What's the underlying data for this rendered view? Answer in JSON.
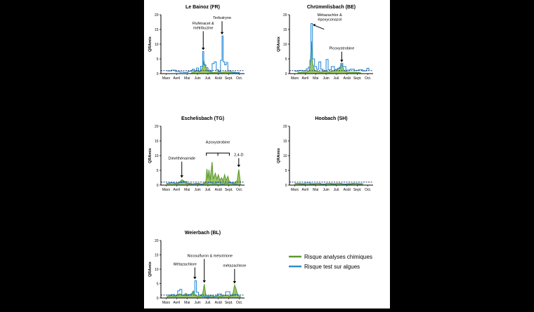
{
  "colors": {
    "chem": "#5e9a32",
    "chem_fill": "#9cc86a",
    "algae": "#2e8fd8",
    "threshold": "#1a3a6a",
    "axis": "#000000"
  },
  "legend": {
    "chem_label": "Risque analyses chimiques",
    "algae_label": "Risque test sur algues"
  },
  "chart_data": [
    {
      "type": "area",
      "title": "Le Bainoz (FR)",
      "ylabel": "QRAmix",
      "ylim": [
        0,
        20
      ],
      "yticks": [
        0,
        5,
        10,
        15,
        20
      ],
      "x_tick_labels": [
        "Mars",
        "Avril",
        "Mai",
        "Juin",
        "Juil.",
        "Août",
        "Sept.",
        "Oct."
      ],
      "threshold": 1,
      "series": [
        {
          "name": "Risque analyses chimiques",
          "points": [
            [
              2.9,
              0.2
            ],
            [
              3.3,
              0.8
            ],
            [
              3.5,
              1.2
            ],
            [
              3.7,
              0.6
            ],
            [
              3.9,
              1.3
            ],
            [
              4.0,
              2.5
            ],
            [
              4.1,
              4.5
            ],
            [
              4.2,
              3.0
            ],
            [
              4.4,
              1.2
            ],
            [
              4.6,
              0.6
            ],
            [
              5.0,
              0.3
            ],
            [
              5.4,
              0.5
            ],
            [
              5.6,
              0.9
            ],
            [
              5.8,
              0.4
            ],
            [
              6.2,
              0.6
            ],
            [
              6.6,
              0.5
            ],
            [
              7.0,
              0.3
            ],
            [
              7.4,
              0.4
            ]
          ]
        },
        {
          "name": "Risque test sur algues",
          "points": [
            [
              0.6,
              0.9
            ],
            [
              1.0,
              1.2
            ],
            [
              1.4,
              0.7
            ],
            [
              1.8,
              0.5
            ],
            [
              2.2,
              0.4
            ],
            [
              2.6,
              0.8
            ],
            [
              3.0,
              1.5
            ],
            [
              3.2,
              0.9
            ],
            [
              3.4,
              1.9
            ],
            [
              3.6,
              0.8
            ],
            [
              3.8,
              2.5
            ],
            [
              4.0,
              7.5
            ],
            [
              4.1,
              3.0
            ],
            [
              4.3,
              2.0
            ],
            [
              4.5,
              1.2
            ],
            [
              4.7,
              0.7
            ],
            [
              4.9,
              3.4
            ],
            [
              5.1,
              4.0
            ],
            [
              5.3,
              1.3
            ],
            [
              5.5,
              0.5
            ],
            [
              5.7,
              4.5
            ],
            [
              5.85,
              12.8
            ],
            [
              5.95,
              4.0
            ],
            [
              6.1,
              3.0
            ],
            [
              6.25,
              3.8
            ],
            [
              6.4,
              1.0
            ],
            [
              6.7,
              0.5
            ],
            [
              7.1,
              0.3
            ],
            [
              7.5,
              0.6
            ]
          ]
        }
      ],
      "annotations": [
        {
          "lines": [
            "Flufénacet &",
            "métribuzine"
          ],
          "x": 4.05,
          "y": 7.5
        },
        {
          "lines": [
            "Terbutryne"
          ],
          "x": 5.85,
          "y": 12.8
        }
      ]
    },
    {
      "type": "area",
      "title": "Chrümmlisbach (BE)",
      "ylabel": "QRAmix",
      "ylim": [
        0,
        20
      ],
      "yticks": [
        0,
        5,
        10,
        15,
        20
      ],
      "x_tick_labels": [
        "Mars",
        "Avril",
        "Mai",
        "Juin",
        "Juil.",
        "Août",
        "Sept.",
        "Oct."
      ],
      "threshold": 1,
      "series": [
        {
          "name": "Risque analyses chimiques",
          "points": [
            [
              0.8,
              0.3
            ],
            [
              1.2,
              0.5
            ],
            [
              1.6,
              0.4
            ],
            [
              1.9,
              1.0
            ],
            [
              2.0,
              4.0
            ],
            [
              2.1,
              11.0
            ],
            [
              2.2,
              3.5
            ],
            [
              2.4,
              1.2
            ],
            [
              2.6,
              0.8
            ],
            [
              3.0,
              0.5
            ],
            [
              3.4,
              0.8
            ],
            [
              3.8,
              0.5
            ],
            [
              4.2,
              1.0
            ],
            [
              4.6,
              1.5
            ],
            [
              4.9,
              2.5
            ],
            [
              5.0,
              3.2
            ],
            [
              5.2,
              1.2
            ],
            [
              5.5,
              0.6
            ],
            [
              5.9,
              0.4
            ],
            [
              6.3,
              0.5
            ],
            [
              6.8,
              0.3
            ]
          ]
        },
        {
          "name": "Risque test sur algues",
          "points": [
            [
              0.5,
              0.8
            ],
            [
              0.9,
              1.1
            ],
            [
              1.3,
              0.9
            ],
            [
              1.6,
              1.6
            ],
            [
              1.8,
              2.2
            ],
            [
              1.95,
              4.5
            ],
            [
              2.05,
              17.0
            ],
            [
              2.2,
              5.0
            ],
            [
              2.4,
              2.4
            ],
            [
              2.6,
              1.5
            ],
            [
              2.8,
              4.0
            ],
            [
              3.0,
              1.5
            ],
            [
              3.2,
              1.0
            ],
            [
              3.5,
              4.8
            ],
            [
              3.7,
              1.3
            ],
            [
              4.0,
              2.4
            ],
            [
              4.3,
              1.4
            ],
            [
              4.6,
              1.8
            ],
            [
              4.9,
              3.5
            ],
            [
              5.1,
              2.4
            ],
            [
              5.4,
              1.2
            ],
            [
              5.8,
              1.5
            ],
            [
              6.2,
              1.1
            ],
            [
              6.6,
              1.3
            ],
            [
              7.0,
              0.9
            ],
            [
              7.4,
              1.8
            ],
            [
              7.6,
              1.0
            ]
          ]
        }
      ],
      "annotations": [
        {
          "lines": [
            "Métazachlor &",
            "époxyconazol"
          ],
          "x": 2.1,
          "y": 16.5
        },
        {
          "lines": [
            "Picoxystrobine"
          ],
          "x": 5.0,
          "y": 3.4
        }
      ]
    },
    {
      "type": "area",
      "title": "Eschelisbach (TG)",
      "ylabel": "QRAmix",
      "ylim": [
        0,
        20
      ],
      "yticks": [
        0,
        5,
        10,
        15,
        20
      ],
      "x_tick_labels": [
        "Mars",
        "Avril",
        "Mai",
        "Juin",
        "Juil.",
        "Août",
        "Sept.",
        "Oct."
      ],
      "threshold": 1,
      "series": [
        {
          "name": "Risque analyses chimiques",
          "points": [
            [
              0.6,
              0.5
            ],
            [
              1.0,
              0.9
            ],
            [
              1.4,
              0.6
            ],
            [
              1.8,
              1.0
            ],
            [
              2.0,
              1.8
            ],
            [
              2.2,
              1.4
            ],
            [
              2.4,
              0.6
            ],
            [
              2.8,
              0.3
            ],
            [
              3.2,
              0.5
            ],
            [
              3.6,
              0.4
            ],
            [
              4.0,
              0.4
            ],
            [
              4.3,
              1.2
            ],
            [
              4.4,
              5.5
            ],
            [
              4.5,
              2.0
            ],
            [
              4.6,
              5.2
            ],
            [
              4.7,
              1.5
            ],
            [
              4.9,
              7.8
            ],
            [
              5.0,
              2.0
            ],
            [
              5.2,
              4.0
            ],
            [
              5.35,
              2.0
            ],
            [
              5.5,
              3.5
            ],
            [
              5.65,
              1.5
            ],
            [
              5.8,
              2.5
            ],
            [
              5.95,
              1.5
            ],
            [
              6.1,
              3.5
            ],
            [
              6.25,
              1.5
            ],
            [
              6.4,
              3.0
            ],
            [
              6.55,
              1.2
            ],
            [
              6.8,
              0.6
            ],
            [
              7.1,
              0.8
            ],
            [
              7.3,
              1.5
            ],
            [
              7.45,
              5.3
            ],
            [
              7.6,
              1.0
            ]
          ]
        },
        {
          "name": "Risque test sur algues",
          "points": [
            [
              0.5,
              0.6
            ],
            [
              0.9,
              0.8
            ],
            [
              1.3,
              0.5
            ],
            [
              1.7,
              0.8
            ],
            [
              2.1,
              1.2
            ],
            [
              2.5,
              0.6
            ],
            [
              2.9,
              0.4
            ],
            [
              3.3,
              0.6
            ],
            [
              3.7,
              0.3
            ],
            [
              4.1,
              0.6
            ],
            [
              4.5,
              0.9
            ],
            [
              4.9,
              0.5
            ],
            [
              5.3,
              1.0
            ],
            [
              5.7,
              0.4
            ],
            [
              6.1,
              0.6
            ],
            [
              6.5,
              0.8
            ],
            [
              6.9,
              0.4
            ],
            [
              7.3,
              0.5
            ]
          ]
        }
      ],
      "annotations": [
        {
          "lines": [
            "Diméthénamide"
          ],
          "x": 2.0,
          "y": 2.0
        },
        {
          "lines": [
            "Azoxystrobine"
          ],
          "x": 5.4,
          "y": 8.5
        },
        {
          "lines": [
            "2,4-D"
          ],
          "x": 7.45,
          "y": 5.6
        }
      ]
    },
    {
      "type": "area",
      "title": "Hoobach (SH)",
      "ylabel": "QRAmix",
      "ylim": [
        0,
        20
      ],
      "yticks": [
        0,
        5,
        10,
        15,
        20
      ],
      "x_tick_labels": [
        "Mars",
        "Avril",
        "Mai",
        "Juin",
        "Juil.",
        "Août",
        "Sept.",
        "Oct."
      ],
      "threshold": 1,
      "series": [
        {
          "name": "Risque analyses chimiques",
          "points": [
            [
              0.5,
              0.2
            ],
            [
              1.0,
              0.3
            ],
            [
              1.5,
              0.2
            ],
            [
              2.0,
              0.3
            ],
            [
              2.5,
              0.2
            ],
            [
              3.0,
              0.3
            ],
            [
              3.5,
              0.2
            ],
            [
              4.0,
              0.3
            ],
            [
              4.5,
              0.2
            ],
            [
              5.0,
              0.3
            ],
            [
              5.5,
              0.2
            ],
            [
              6.0,
              0.3
            ],
            [
              6.5,
              0.2
            ],
            [
              7.0,
              0.2
            ]
          ]
        },
        {
          "name": "Risque test sur algues",
          "points": [
            [
              0.5,
              0.6
            ],
            [
              1.0,
              0.5
            ],
            [
              1.5,
              0.7
            ],
            [
              2.0,
              0.5
            ],
            [
              2.5,
              0.6
            ],
            [
              3.0,
              0.4
            ],
            [
              3.5,
              0.6
            ],
            [
              4.0,
              0.5
            ],
            [
              4.5,
              0.6
            ],
            [
              5.0,
              0.4
            ],
            [
              5.5,
              0.5
            ],
            [
              6.0,
              0.6
            ],
            [
              6.5,
              0.5
            ],
            [
              7.0,
              0.4
            ]
          ]
        }
      ],
      "annotations": []
    },
    {
      "type": "area",
      "title": "Weierbach (BL)",
      "ylabel": "QRAmix",
      "ylim": [
        0,
        20
      ],
      "yticks": [
        0,
        5,
        10,
        15,
        20
      ],
      "x_tick_labels": [
        "Mars",
        "Avril",
        "Mai",
        "Juin",
        "Juil.",
        "Août",
        "Sept.",
        "Oct."
      ],
      "threshold": 1,
      "series": [
        {
          "name": "Risque analyses chimiques",
          "points": [
            [
              0.6,
              0.5
            ],
            [
              1.0,
              0.8
            ],
            [
              1.4,
              0.6
            ],
            [
              1.8,
              1.5
            ],
            [
              2.1,
              0.8
            ],
            [
              2.4,
              1.6
            ],
            [
              2.6,
              0.9
            ],
            [
              2.9,
              1.2
            ],
            [
              3.1,
              2.5
            ],
            [
              3.3,
              0.8
            ],
            [
              3.7,
              0.5
            ],
            [
              4.0,
              1.5
            ],
            [
              4.15,
              4.8
            ],
            [
              4.3,
              1.0
            ],
            [
              4.6,
              0.5
            ],
            [
              5.0,
              0.4
            ],
            [
              5.4,
              0.8
            ],
            [
              5.8,
              0.5
            ],
            [
              6.2,
              1.0
            ],
            [
              6.6,
              0.5
            ],
            [
              6.9,
              1.5
            ],
            [
              7.05,
              4.5
            ],
            [
              7.2,
              3.0
            ],
            [
              7.35,
              1.0
            ],
            [
              7.6,
              0.5
            ]
          ]
        },
        {
          "name": "Risque test sur algues",
          "points": [
            [
              0.6,
              1.0
            ],
            [
              1.0,
              1.2
            ],
            [
              1.3,
              0.8
            ],
            [
              1.6,
              2.5
            ],
            [
              1.8,
              3.0
            ],
            [
              2.0,
              1.0
            ],
            [
              2.3,
              0.8
            ],
            [
              2.6,
              1.2
            ],
            [
              2.9,
              1.5
            ],
            [
              3.1,
              2.0
            ],
            [
              3.25,
              6.0
            ],
            [
              3.4,
              2.0
            ],
            [
              3.6,
              1.0
            ],
            [
              3.9,
              0.6
            ],
            [
              4.2,
              0.4
            ],
            [
              4.6,
              0.8
            ],
            [
              5.0,
              0.6
            ],
            [
              5.4,
              1.4
            ],
            [
              5.8,
              0.8
            ],
            [
              6.2,
              2.2
            ],
            [
              6.6,
              0.8
            ],
            [
              7.0,
              1.2
            ],
            [
              7.4,
              0.6
            ]
          ]
        }
      ],
      "annotations": [
        {
          "lines": [
            "Métazachlore"
          ],
          "x": 3.25,
          "y": 6.0
        },
        {
          "lines": [
            "Nicosulfuron & mésotrione"
          ],
          "x": 4.15,
          "y": 4.8
        },
        {
          "lines": [
            "métazachlore"
          ],
          "x": 7.05,
          "y": 4.5
        }
      ]
    }
  ]
}
